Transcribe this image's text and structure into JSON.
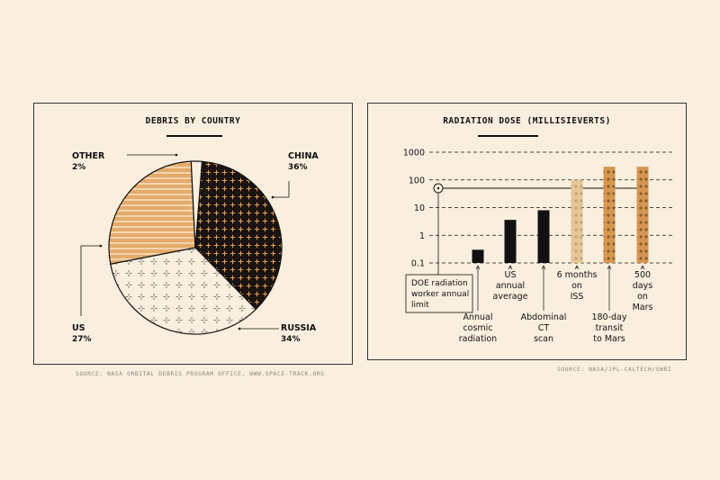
{
  "colors": {
    "background": "#faefde",
    "china_fill": "#1a1412",
    "china_pattern": "#e0a35a",
    "other_fill": "#faefde",
    "us_fill": "#e4ab6a",
    "us_stripes": "#faefde",
    "russia_fill": "#faefde",
    "russia_pattern": "#555555",
    "bar_black": "#111111",
    "bar_light": "#e6c596",
    "bar_orange": "#d6964f",
    "bar_pattern": "#5a3a20"
  },
  "left_panel": {
    "title": "DEBRIS BY COUNTRY",
    "source": "SOURCE: NASA ORBITAL DEBRIS PROGRAM OFFICE, WWW.SPACE-TRACK.ORG"
  },
  "right_panel": {
    "title": "RADIATION DOSE (MILLISIEVERTS)",
    "source": "SOURCE: NASA/JPL-CALTECH/SWRI"
  },
  "chart_data": [
    {
      "type": "pie",
      "title": "DEBRIS BY COUNTRY",
      "slices": [
        {
          "label": "CHINA",
          "value": 36,
          "value_label": "36%",
          "pattern": "crosses-on-dark"
        },
        {
          "label": "RUSSIA",
          "value": 34,
          "value_label": "34%",
          "pattern": "sparkles-on-light"
        },
        {
          "label": "US",
          "value": 27,
          "value_label": "27%",
          "pattern": "horizontal-stripes"
        },
        {
          "label": "OTHER",
          "value": 2,
          "value_label": "2%",
          "pattern": "plain"
        }
      ]
    },
    {
      "type": "bar",
      "title": "RADIATION DOSE (MILLISIEVERTS)",
      "y_scale": "log",
      "ylim": [
        0.1,
        1000
      ],
      "y_ticks": [
        "1000",
        "100",
        "10",
        "1",
        "0.1"
      ],
      "grid": "dashed-horizontal",
      "reference": {
        "value": 50,
        "label": [
          "DOE radiation",
          "worker annual",
          "limit"
        ]
      },
      "bars": [
        {
          "label": [
            "Annual",
            "cosmic",
            "radiation"
          ],
          "value": 0.3,
          "style": "solid"
        },
        {
          "label": [
            "US",
            "annual",
            "average"
          ],
          "value": 3.6,
          "style": "solid"
        },
        {
          "label": [
            "Abdominal",
            "CT",
            "scan"
          ],
          "value": 8,
          "style": "solid"
        },
        {
          "label": [
            "6 months",
            "on",
            "ISS"
          ],
          "value": 100,
          "style": "light-patterned"
        },
        {
          "label": [
            "180-day",
            "transit",
            "to Mars"
          ],
          "value": 300,
          "style": "orange-patterned"
        },
        {
          "label": [
            "500",
            "days",
            "on",
            "Mars"
          ],
          "value": 300,
          "style": "orange-patterned"
        }
      ]
    }
  ]
}
